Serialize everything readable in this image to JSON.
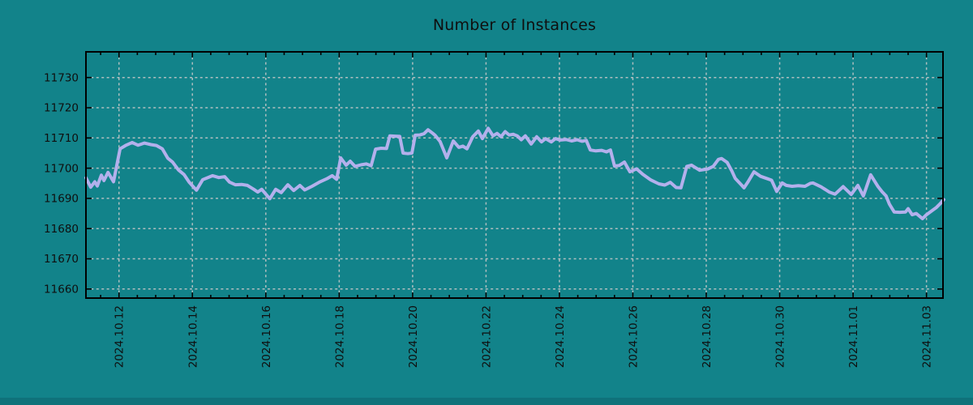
{
  "colors": {
    "background": "#12838a",
    "footer_strip": "#0f727a",
    "grid": "#c9c9c9",
    "axis": "#000000",
    "text": "#0f0f0f",
    "line": "#b3b0ec"
  },
  "chart_data": {
    "type": "line",
    "title": "Number of Instances",
    "xlabel": "",
    "ylabel": "",
    "legend": "none",
    "grid": "dashed-major",
    "x_axis": {
      "kind": "time",
      "tick_labels": [
        "2024.10.12",
        "2024.10.14",
        "2024.10.16",
        "2024.10.18",
        "2024.10.20",
        "2024.10.22",
        "2024.10.24",
        "2024.10.26",
        "2024.10.28",
        "2024.10.30",
        "2024.11.01",
        "2024.11.03"
      ],
      "tick_positions_days": [
        0,
        2,
        4,
        6,
        8,
        10,
        12,
        14,
        16,
        18,
        20,
        22
      ],
      "minor_tick_interval_days": 0.5,
      "range_days": [
        -0.9,
        22.45
      ],
      "label_rotation_deg": -90
    },
    "y_axis": {
      "ticks": [
        11660,
        11670,
        11680,
        11690,
        11700,
        11710,
        11720,
        11730
      ],
      "range": [
        11657,
        11738.5
      ]
    },
    "series": [
      {
        "name": "instances",
        "color": "#b3b0ec",
        "points_days_value": [
          [
            -0.9,
            11696.8
          ],
          [
            -0.77,
            11693.7
          ],
          [
            -0.66,
            11695.5
          ],
          [
            -0.59,
            11694.1
          ],
          [
            -0.48,
            11697.7
          ],
          [
            -0.41,
            11695.9
          ],
          [
            -0.3,
            11698.6
          ],
          [
            -0.15,
            11695.5
          ],
          [
            0.03,
            11706.4
          ],
          [
            0.18,
            11707.5
          ],
          [
            0.36,
            11708.5
          ],
          [
            0.52,
            11707.6
          ],
          [
            0.69,
            11708.3
          ],
          [
            0.87,
            11707.8
          ],
          [
            1.02,
            11707.5
          ],
          [
            1.18,
            11706.4
          ],
          [
            1.33,
            11703.3
          ],
          [
            1.46,
            11702.0
          ],
          [
            1.62,
            11699.4
          ],
          [
            1.77,
            11697.9
          ],
          [
            1.91,
            11695.4
          ],
          [
            2.11,
            11692.7
          ],
          [
            2.28,
            11696.2
          ],
          [
            2.41,
            11696.8
          ],
          [
            2.55,
            11697.5
          ],
          [
            2.72,
            11696.9
          ],
          [
            2.88,
            11697.2
          ],
          [
            3.01,
            11695.4
          ],
          [
            3.17,
            11694.5
          ],
          [
            3.34,
            11694.6
          ],
          [
            3.5,
            11694.3
          ],
          [
            3.67,
            11693.0
          ],
          [
            3.78,
            11692.1
          ],
          [
            3.89,
            11693.0
          ],
          [
            4.05,
            11690.7
          ],
          [
            4.11,
            11689.9
          ],
          [
            4.27,
            11693.0
          ],
          [
            4.42,
            11691.9
          ],
          [
            4.6,
            11694.5
          ],
          [
            4.76,
            11692.6
          ],
          [
            4.93,
            11694.3
          ],
          [
            5.06,
            11692.8
          ],
          [
            5.26,
            11694.0
          ],
          [
            5.48,
            11695.5
          ],
          [
            5.66,
            11696.5
          ],
          [
            5.81,
            11697.5
          ],
          [
            5.93,
            11696.3
          ],
          [
            6.04,
            11703.4
          ],
          [
            6.19,
            11701.0
          ],
          [
            6.3,
            11702.3
          ],
          [
            6.43,
            11700.6
          ],
          [
            6.59,
            11701.1
          ],
          [
            6.74,
            11701.4
          ],
          [
            6.87,
            11700.8
          ],
          [
            6.99,
            11706.3
          ],
          [
            7.14,
            11706.6
          ],
          [
            7.29,
            11706.5
          ],
          [
            7.38,
            11710.7
          ],
          [
            7.52,
            11710.6
          ],
          [
            7.65,
            11710.5
          ],
          [
            7.74,
            11705.0
          ],
          [
            7.87,
            11704.8
          ],
          [
            7.98,
            11705.0
          ],
          [
            8.07,
            11710.9
          ],
          [
            8.2,
            11711.0
          ],
          [
            8.31,
            11711.4
          ],
          [
            8.42,
            11712.7
          ],
          [
            8.55,
            11711.5
          ],
          [
            8.62,
            11710.8
          ],
          [
            8.75,
            11708.8
          ],
          [
            8.93,
            11703.4
          ],
          [
            9.11,
            11709.0
          ],
          [
            9.26,
            11706.9
          ],
          [
            9.37,
            11707.3
          ],
          [
            9.48,
            11706.4
          ],
          [
            9.64,
            11710.4
          ],
          [
            9.79,
            11712.3
          ],
          [
            9.9,
            11709.8
          ],
          [
            10.06,
            11713.2
          ],
          [
            10.19,
            11710.7
          ],
          [
            10.3,
            11711.5
          ],
          [
            10.41,
            11710.4
          ],
          [
            10.52,
            11712.1
          ],
          [
            10.63,
            11711.0
          ],
          [
            10.74,
            11711.2
          ],
          [
            10.85,
            11710.7
          ],
          [
            10.96,
            11709.4
          ],
          [
            11.07,
            11710.7
          ],
          [
            11.23,
            11708.0
          ],
          [
            11.38,
            11710.4
          ],
          [
            11.51,
            11708.7
          ],
          [
            11.62,
            11709.8
          ],
          [
            11.78,
            11708.7
          ],
          [
            11.89,
            11709.8
          ],
          [
            12.02,
            11709.3
          ],
          [
            12.18,
            11709.5
          ],
          [
            12.33,
            11709.0
          ],
          [
            12.48,
            11709.4
          ],
          [
            12.62,
            11708.9
          ],
          [
            12.73,
            11709.2
          ],
          [
            12.84,
            11706.0
          ],
          [
            12.99,
            11705.7
          ],
          [
            13.15,
            11705.9
          ],
          [
            13.28,
            11705.4
          ],
          [
            13.39,
            11706.0
          ],
          [
            13.5,
            11700.7
          ],
          [
            13.63,
            11700.9
          ],
          [
            13.77,
            11702.0
          ],
          [
            13.92,
            11698.8
          ],
          [
            14.1,
            11699.8
          ],
          [
            14.27,
            11698.0
          ],
          [
            14.49,
            11696.1
          ],
          [
            14.71,
            11694.8
          ],
          [
            14.87,
            11694.4
          ],
          [
            15.02,
            11695.3
          ],
          [
            15.18,
            11693.6
          ],
          [
            15.31,
            11693.5
          ],
          [
            15.47,
            11700.6
          ],
          [
            15.6,
            11701.0
          ],
          [
            15.82,
            11699.3
          ],
          [
            16.04,
            11699.7
          ],
          [
            16.19,
            11700.6
          ],
          [
            16.33,
            11702.9
          ],
          [
            16.42,
            11703.2
          ],
          [
            16.57,
            11701.9
          ],
          [
            16.7,
            11699.0
          ],
          [
            16.79,
            11696.6
          ],
          [
            16.97,
            11694.3
          ],
          [
            17.03,
            11693.5
          ],
          [
            17.14,
            11695.5
          ],
          [
            17.3,
            11698.8
          ],
          [
            17.48,
            11697.3
          ],
          [
            17.67,
            11696.5
          ],
          [
            17.78,
            11696.0
          ],
          [
            17.92,
            11692.3
          ],
          [
            18.07,
            11695.1
          ],
          [
            18.18,
            11694.3
          ],
          [
            18.34,
            11694.0
          ],
          [
            18.51,
            11694.2
          ],
          [
            18.69,
            11694.0
          ],
          [
            18.84,
            11695.0
          ],
          [
            18.91,
            11695.1
          ],
          [
            19.13,
            11693.8
          ],
          [
            19.35,
            11692.1
          ],
          [
            19.51,
            11691.4
          ],
          [
            19.73,
            11693.9
          ],
          [
            19.95,
            11691.3
          ],
          [
            20.13,
            11694.3
          ],
          [
            20.28,
            11690.8
          ],
          [
            20.48,
            11697.8
          ],
          [
            20.68,
            11693.9
          ],
          [
            20.79,
            11692.2
          ],
          [
            20.9,
            11690.8
          ],
          [
            20.99,
            11688.1
          ],
          [
            21.12,
            11685.5
          ],
          [
            21.27,
            11685.4
          ],
          [
            21.43,
            11685.5
          ],
          [
            21.5,
            11686.6
          ],
          [
            21.61,
            11684.6
          ],
          [
            21.72,
            11685.0
          ],
          [
            21.89,
            11683.3
          ],
          [
            22.0,
            11684.6
          ],
          [
            22.16,
            11686.0
          ],
          [
            22.27,
            11687.0
          ],
          [
            22.38,
            11688.3
          ],
          [
            22.47,
            11689.6
          ]
        ]
      }
    ]
  }
}
